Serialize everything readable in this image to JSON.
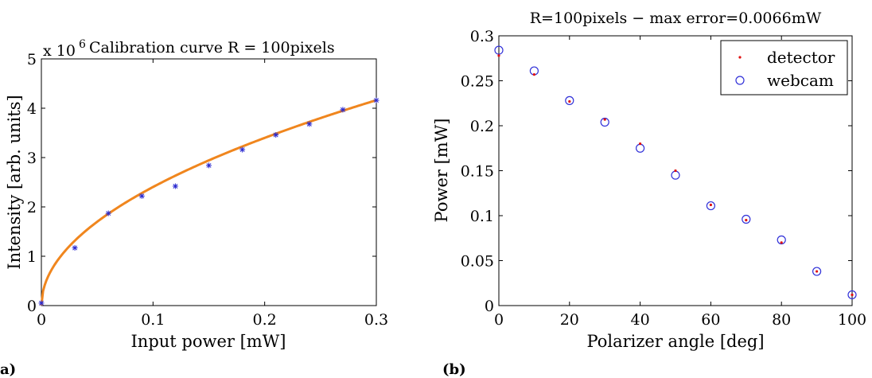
{
  "panel_labels": [
    "a)",
    "(b)"
  ],
  "chart_data": [
    {
      "type": "scatter",
      "title": "Calibration curve R = 100pixels",
      "xlabel": "Input power [mW]",
      "ylabel": "Intensity [arb. units]",
      "y_multiplier": "x 10",
      "y_multiplier_exp": "6",
      "xlim": [
        0,
        0.3
      ],
      "ylim": [
        0,
        5
      ],
      "xticks": [
        "0",
        "0.1",
        "0.2",
        "0.3"
      ],
      "yticks": [
        "0",
        "1",
        "2",
        "3",
        "4",
        "5"
      ],
      "grid": false,
      "series": [
        {
          "marker": "asterisk",
          "color": "#2a2ad0",
          "x": [
            0.0,
            0.03,
            0.06,
            0.09,
            0.12,
            0.15,
            0.18,
            0.21,
            0.24,
            0.27,
            0.3
          ],
          "y": [
            0.05,
            1.17,
            1.87,
            2.22,
            2.42,
            2.84,
            3.16,
            3.46,
            3.68,
            3.97,
            4.16
          ]
        },
        {
          "type": "line",
          "color": "#f0861e",
          "fit_coefficient": 7.6,
          "fit_exponent": 0.5
        }
      ]
    },
    {
      "type": "scatter",
      "title": "R=100pixels − max error=0.0066mW",
      "xlabel": "Polarizer angle [deg]",
      "ylabel": "Power [mW]",
      "xlim": [
        0,
        100
      ],
      "ylim": [
        0,
        0.3
      ],
      "xticks": [
        "0",
        "20",
        "40",
        "60",
        "80",
        "100"
      ],
      "yticks": [
        "0",
        "0.05",
        "0.1",
        "0.15",
        "0.2",
        "0.25",
        "0.3"
      ],
      "grid": false,
      "legend_position": "top-right",
      "series": [
        {
          "name": "detector",
          "marker": "dot",
          "color": "#e01010",
          "x": [
            0,
            10,
            20,
            30,
            40,
            50,
            60,
            70,
            80,
            90,
            100
          ],
          "y": [
            0.278,
            0.257,
            0.227,
            0.207,
            0.18,
            0.15,
            0.112,
            0.095,
            0.07,
            0.038,
            0.012
          ]
        },
        {
          "name": "webcam",
          "marker": "circle",
          "color": "#3030d8",
          "x": [
            0,
            10,
            20,
            30,
            40,
            50,
            60,
            70,
            80,
            90,
            100
          ],
          "y": [
            0.284,
            0.261,
            0.228,
            0.204,
            0.175,
            0.145,
            0.111,
            0.096,
            0.073,
            0.038,
            0.012
          ]
        }
      ]
    }
  ]
}
